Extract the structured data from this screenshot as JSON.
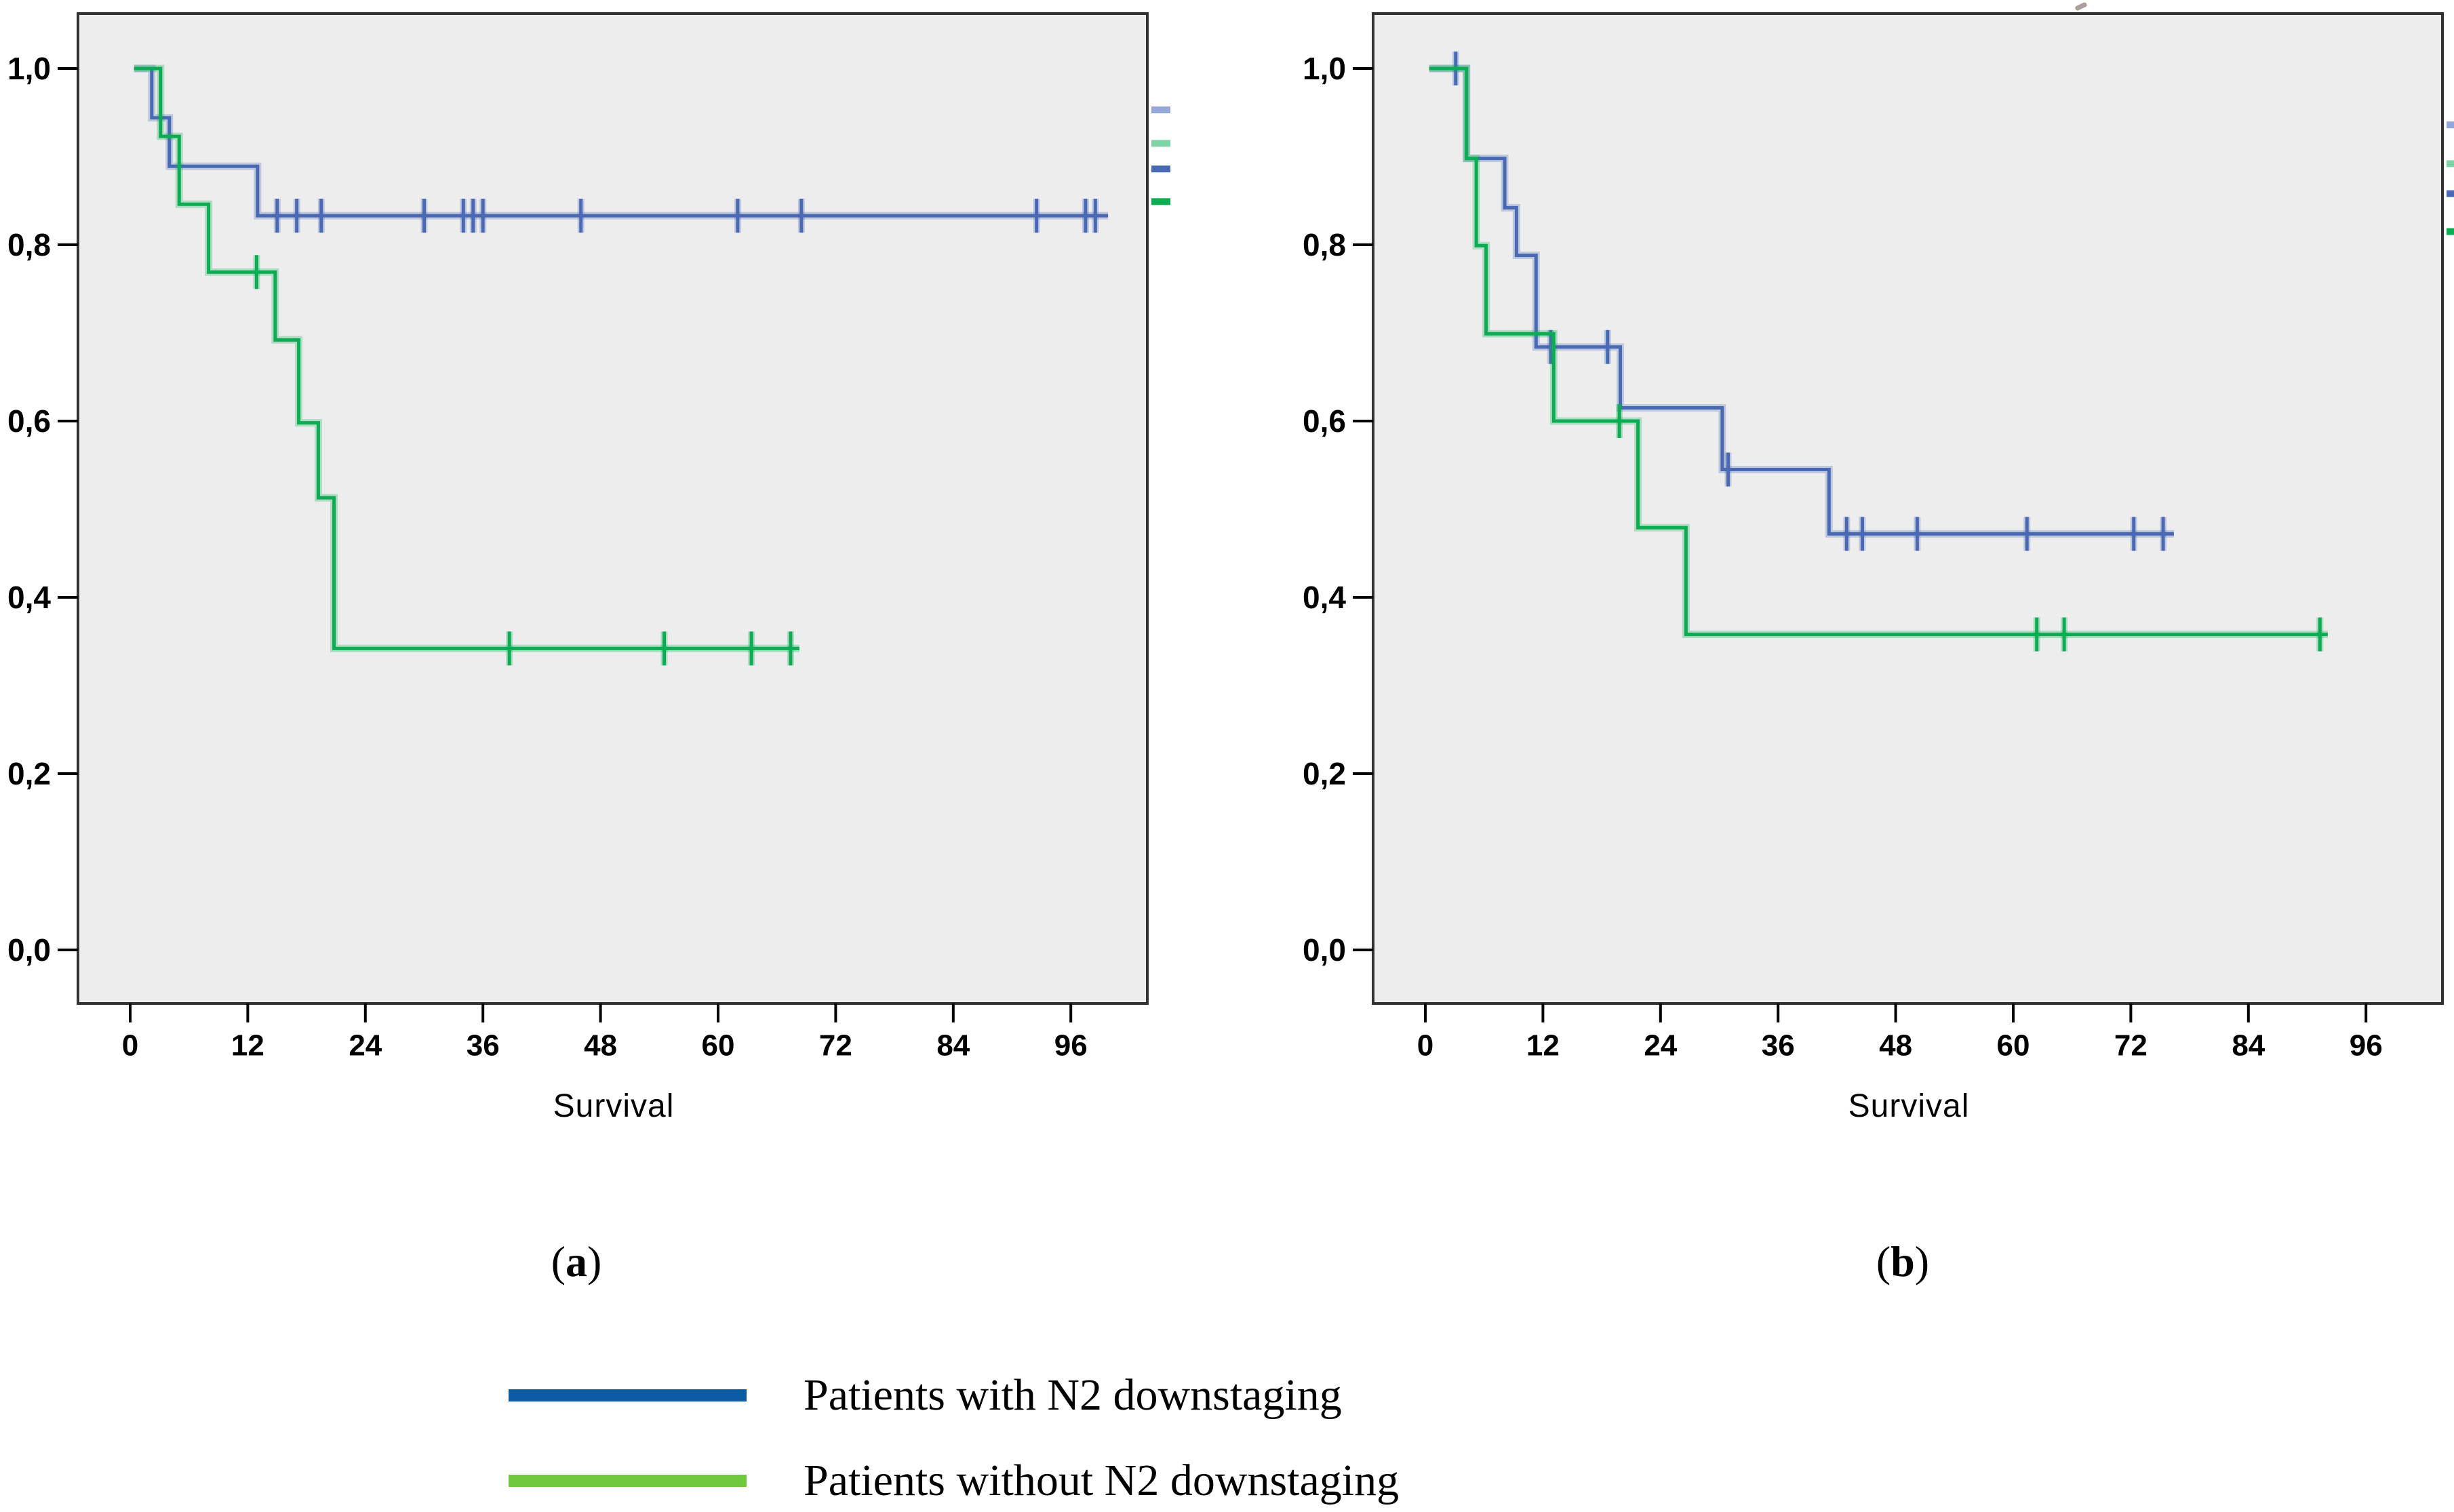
{
  "chart_data": [
    {
      "id": "a",
      "type": "line",
      "subtype": "kaplan-meier-step",
      "caption_open": "(",
      "caption_letter": "a",
      "caption_close": ")",
      "xlabel": "Survival",
      "xlim": [
        0,
        104
      ],
      "ylim": [
        0,
        1
      ],
      "x_ticks": [
        0,
        12,
        24,
        36,
        48,
        60,
        72,
        84,
        96
      ],
      "y_tick_values": [
        1.0,
        0.8,
        0.6,
        0.4,
        0.2,
        0.0
      ],
      "y_tick_labels": [
        "1,0",
        "0,8",
        "0,6",
        "0,4",
        "0,2",
        "0,0"
      ],
      "plot_bg": "#EDEDED",
      "border_color": "#333333",
      "grid": false,
      "series": [
        {
          "name": "Patients with N2 downstaging",
          "color": "#4A69B4",
          "steps": [
            [
              0.4,
              1.0
            ],
            [
              2.2,
              0.944
            ],
            [
              4.0,
              0.889
            ],
            [
              13.0,
              0.833
            ]
          ],
          "end": 99.8,
          "censors": [
            [
              15,
              0.833
            ],
            [
              17,
              0.833
            ],
            [
              19.5,
              0.833
            ],
            [
              30,
              0.833
            ],
            [
              34,
              0.833
            ],
            [
              35,
              0.833
            ],
            [
              36,
              0.833
            ],
            [
              46,
              0.833
            ],
            [
              62,
              0.833
            ],
            [
              68.5,
              0.833
            ],
            [
              92.5,
              0.833
            ],
            [
              97.5,
              0.833
            ],
            [
              98.5,
              0.833
            ]
          ]
        },
        {
          "name": "Patients without N2 downstaging",
          "color": "#0CAD52",
          "steps": [
            [
              0.4,
              1.0
            ],
            [
              3.1,
              0.923
            ],
            [
              5.0,
              0.846
            ],
            [
              8.0,
              0.769
            ],
            [
              14.8,
              0.692
            ],
            [
              17.2,
              0.598
            ],
            [
              19.2,
              0.513
            ],
            [
              20.8,
              0.342
            ]
          ],
          "end": 68.3,
          "censors": [
            [
              12.9,
              0.769
            ],
            [
              38.7,
              0.342
            ],
            [
              54.5,
              0.342
            ],
            [
              63.4,
              0.342
            ],
            [
              67.4,
              0.342
            ]
          ]
        }
      ],
      "edge_marks": [
        {
          "color": "#93A7DA",
          "value": 0.953
        },
        {
          "color": "#7ED3A4",
          "value": 0.915
        },
        {
          "color": "#4A69B4",
          "value": 0.886
        },
        {
          "color": "#0CAD52",
          "value": 0.849
        }
      ]
    },
    {
      "id": "b",
      "type": "line",
      "subtype": "kaplan-meier-step",
      "caption_open": "(",
      "caption_letter": "b",
      "caption_close": ")",
      "xlabel": "Survival",
      "xlim": [
        0,
        104
      ],
      "ylim": [
        0,
        1
      ],
      "x_ticks": [
        0,
        12,
        24,
        36,
        48,
        60,
        72,
        84,
        96
      ],
      "y_tick_values": [
        1.0,
        0.8,
        0.6,
        0.4,
        0.2,
        0.0
      ],
      "y_tick_labels": [
        "1,0",
        "0,8",
        "0,6",
        "0,4",
        "0,2",
        "0,0"
      ],
      "plot_bg": "#EDEDED",
      "border_color": "#333333",
      "grid": false,
      "series": [
        {
          "name": "Patients with N2 downstaging",
          "color": "#4A69B4",
          "steps": [
            [
              0.4,
              1.0
            ],
            [
              4.2,
              0.898
            ],
            [
              8.1,
              0.842
            ],
            [
              9.3,
              0.788
            ],
            [
              11.3,
              0.684
            ],
            [
              19.9,
              0.615
            ],
            [
              30.3,
              0.545
            ],
            [
              41.2,
              0.472
            ]
          ],
          "end": 76.4,
          "censors": [
            [
              3.1,
              1.0
            ],
            [
              12.8,
              0.684
            ],
            [
              18.6,
              0.684
            ],
            [
              30.9,
              0.545
            ],
            [
              43.0,
              0.472
            ],
            [
              44.6,
              0.472
            ],
            [
              50.2,
              0.472
            ],
            [
              61.4,
              0.472
            ],
            [
              72.3,
              0.472
            ],
            [
              75.3,
              0.472
            ]
          ]
        },
        {
          "name": "Patients without N2 downstaging",
          "color": "#0CAD52",
          "steps": [
            [
              0.4,
              1.0
            ],
            [
              4.2,
              0.898
            ],
            [
              5.2,
              0.799
            ],
            [
              6.2,
              0.699
            ],
            [
              13.1,
              0.6
            ],
            [
              21.7,
              0.479
            ],
            [
              26.6,
              0.358
            ]
          ],
          "end": 92.1,
          "censors": [
            [
              19.8,
              0.6
            ],
            [
              62.4,
              0.358
            ],
            [
              65.2,
              0.358
            ],
            [
              91.3,
              0.358
            ]
          ]
        }
      ],
      "edge_marks": [
        {
          "color": "#93A7DA",
          "value": 0.936
        },
        {
          "color": "#7ED3A4",
          "value": 0.892
        },
        {
          "color": "#4A69B4",
          "value": 0.858
        },
        {
          "color": "#0CAD52",
          "value": 0.815
        }
      ]
    }
  ],
  "legend": {
    "items": [
      {
        "label": "Patients with N2 downstaging",
        "color": "#0B5AA5"
      },
      {
        "label": "Patients without N2 downstaging",
        "color": "#70C83E"
      }
    ]
  }
}
